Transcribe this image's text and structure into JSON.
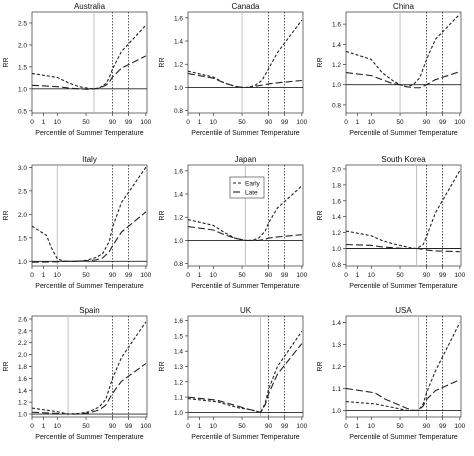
{
  "figure": {
    "xlabel": "Percentile of Summer Temperature",
    "ylabel": "RR",
    "legend": {
      "early": "Early",
      "late": "Late",
      "placement": "in Japan panel, upper center"
    }
  },
  "chart_data": [
    {
      "type": "line",
      "title": "Australia",
      "xlabel": "Percentile of Summer Temperature",
      "ylabel": "RR",
      "x_ticks": [
        "0",
        "1",
        "10",
        "50",
        "90",
        "99",
        "100"
      ],
      "y_ticks": [
        0.5,
        1.0,
        1.5,
        2.0,
        2.5
      ],
      "ylim": [
        0.45,
        2.75
      ],
      "reference_lines": {
        "mmt_percentile": 62,
        "p90": 90,
        "p99": 99,
        "rr_1": 1.0
      },
      "series": [
        {
          "name": "Early",
          "x": [
            0,
            10,
            25,
            40,
            55,
            62,
            70,
            80,
            85,
            90,
            95,
            100
          ],
          "values": [
            1.35,
            1.26,
            1.14,
            1.05,
            1.01,
            1.0,
            1.02,
            1.12,
            1.25,
            1.45,
            1.85,
            2.45
          ]
        },
        {
          "name": "Late",
          "x": [
            0,
            10,
            25,
            40,
            55,
            62,
            70,
            80,
            85,
            90,
            95,
            100
          ],
          "values": [
            1.08,
            1.05,
            1.02,
            1.0,
            0.99,
            1.0,
            1.02,
            1.08,
            1.15,
            1.27,
            1.47,
            1.75
          ]
        }
      ]
    },
    {
      "type": "line",
      "title": "Canada",
      "xlabel": "Percentile of Summer Temperature",
      "ylabel": "RR",
      "x_ticks": [
        "0",
        "1",
        "10",
        "50",
        "90",
        "99",
        "100"
      ],
      "y_ticks": [
        0.8,
        1.0,
        1.2,
        1.4,
        1.6
      ],
      "ylim": [
        0.78,
        1.65
      ],
      "reference_lines": {
        "mmt_percentile": 50,
        "p90": 90,
        "p99": 99,
        "rr_1": 1.0
      },
      "series": [
        {
          "name": "Early",
          "x": [
            0,
            10,
            25,
            40,
            50,
            60,
            70,
            80,
            90,
            95,
            100
          ],
          "values": [
            1.14,
            1.09,
            1.04,
            1.01,
            1.0,
            1.0,
            1.02,
            1.06,
            1.16,
            1.3,
            1.58
          ]
        },
        {
          "name": "Late",
          "x": [
            0,
            10,
            25,
            40,
            50,
            60,
            70,
            80,
            90,
            95,
            100
          ],
          "values": [
            1.12,
            1.08,
            1.04,
            1.01,
            1.0,
            1.0,
            1.01,
            1.02,
            1.03,
            1.04,
            1.06
          ]
        }
      ]
    },
    {
      "type": "line",
      "title": "China",
      "xlabel": "Percentile of Summer Temperature",
      "ylabel": "RR",
      "x_ticks": [
        "0",
        "1",
        "10",
        "50",
        "90",
        "99",
        "100"
      ],
      "y_ticks": [
        0.8,
        1.0,
        1.2,
        1.4,
        1.6
      ],
      "ylim": [
        0.72,
        1.72
      ],
      "reference_lines": {
        "mmt_percentile": 50,
        "p90": 90,
        "p99": 99,
        "rr_1": 1.0
      },
      "series": [
        {
          "name": "Early",
          "x": [
            0,
            10,
            25,
            40,
            50,
            60,
            70,
            80,
            90,
            95,
            100
          ],
          "values": [
            1.33,
            1.25,
            1.12,
            1.04,
            1.0,
            0.98,
            1.0,
            1.07,
            1.25,
            1.45,
            1.7
          ]
        },
        {
          "name": "Late",
          "x": [
            0,
            10,
            25,
            40,
            50,
            60,
            70,
            80,
            90,
            95,
            100
          ],
          "values": [
            1.12,
            1.09,
            1.05,
            1.01,
            1.0,
            0.98,
            0.97,
            0.97,
            1.0,
            1.05,
            1.13
          ]
        }
      ]
    },
    {
      "type": "line",
      "title": "Italy",
      "xlabel": "Percentile of Summer Temperature",
      "ylabel": "RR",
      "x_ticks": [
        "0",
        "1",
        "10",
        "50",
        "90",
        "99",
        "100"
      ],
      "y_ticks": [
        1.0,
        1.5,
        2.0,
        2.5,
        3.0
      ],
      "ylim": [
        0.9,
        3.05
      ],
      "reference_lines": {
        "mmt_percentile": 10,
        "p90": 90,
        "p99": 99,
        "rr_1": 1.0
      },
      "series": [
        {
          "name": "Early",
          "x": [
            0,
            3,
            6,
            10,
            20,
            35,
            50,
            65,
            75,
            85,
            90,
            95,
            100
          ],
          "values": [
            1.75,
            1.55,
            1.3,
            1.05,
            1.0,
            1.0,
            1.02,
            1.08,
            1.16,
            1.42,
            1.72,
            2.25,
            3.0
          ]
        },
        {
          "name": "Late",
          "x": [
            0,
            10,
            20,
            35,
            50,
            65,
            75,
            85,
            90,
            95,
            100
          ],
          "values": [
            0.98,
            0.99,
            1.0,
            1.0,
            1.01,
            1.03,
            1.07,
            1.2,
            1.33,
            1.62,
            2.05
          ]
        }
      ]
    },
    {
      "type": "line",
      "title": "Japan",
      "xlabel": "Percentile of Summer Temperature",
      "ylabel": "RR",
      "x_ticks": [
        "0",
        "1",
        "10",
        "50",
        "90",
        "99",
        "100"
      ],
      "y_ticks": [
        0.8,
        1.0,
        1.2,
        1.4,
        1.6
      ],
      "ylim": [
        0.78,
        1.65
      ],
      "reference_lines": {
        "mmt_percentile": 55,
        "p90": 90,
        "p99": 99,
        "rr_1": 1.0
      },
      "series": [
        {
          "name": "Early",
          "x": [
            0,
            10,
            25,
            40,
            55,
            65,
            75,
            85,
            90,
            95,
            100
          ],
          "values": [
            1.18,
            1.13,
            1.07,
            1.02,
            1.0,
            1.0,
            1.02,
            1.08,
            1.15,
            1.28,
            1.47
          ]
        },
        {
          "name": "Late",
          "x": [
            0,
            10,
            25,
            40,
            55,
            65,
            75,
            85,
            90,
            95,
            100
          ],
          "values": [
            1.12,
            1.09,
            1.05,
            1.02,
            1.0,
            1.0,
            1.0,
            1.01,
            1.02,
            1.03,
            1.05
          ]
        }
      ]
    },
    {
      "type": "line",
      "title": "South Korea",
      "xlabel": "Percentile of Summer Temperature",
      "ylabel": "RR",
      "x_ticks": [
        "0",
        "1",
        "10",
        "50",
        "90",
        "99",
        "100"
      ],
      "y_ticks": [
        0.8,
        1.0,
        1.2,
        1.4,
        1.6,
        1.8,
        2.0
      ],
      "ylim": [
        0.78,
        2.05
      ],
      "reference_lines": {
        "mmt_percentile": 75,
        "p90": 90,
        "p99": 99,
        "rr_1": 1.0
      },
      "series": [
        {
          "name": "Early",
          "x": [
            0,
            10,
            25,
            40,
            55,
            65,
            75,
            85,
            90,
            95,
            100
          ],
          "values": [
            1.22,
            1.16,
            1.1,
            1.06,
            1.03,
            1.01,
            1.0,
            1.05,
            1.15,
            1.45,
            1.98
          ]
        },
        {
          "name": "Late",
          "x": [
            0,
            10,
            25,
            40,
            55,
            65,
            75,
            85,
            90,
            95,
            100
          ],
          "values": [
            1.05,
            1.04,
            1.02,
            1.01,
            1.0,
            1.0,
            1.0,
            0.99,
            0.98,
            0.97,
            0.96
          ]
        }
      ]
    },
    {
      "type": "line",
      "title": "Spain",
      "xlabel": "Percentile of Summer Temperature",
      "ylabel": "RR",
      "x_ticks": [
        "0",
        "1",
        "10",
        "50",
        "90",
        "99",
        "100"
      ],
      "y_ticks": [
        1.0,
        1.2,
        1.4,
        1.6,
        1.8,
        2.0,
        2.2,
        2.4,
        2.6
      ],
      "ylim": [
        0.95,
        2.65
      ],
      "reference_lines": {
        "mmt_percentile": 25,
        "p90": 90,
        "p99": 99,
        "rr_1": 1.0
      },
      "series": [
        {
          "name": "Early",
          "x": [
            0,
            10,
            25,
            40,
            55,
            70,
            80,
            90,
            95,
            100
          ],
          "values": [
            1.1,
            1.04,
            1.0,
            1.01,
            1.04,
            1.12,
            1.25,
            1.6,
            1.95,
            2.55
          ]
        },
        {
          "name": "Late",
          "x": [
            0,
            10,
            25,
            40,
            55,
            70,
            80,
            90,
            95,
            100
          ],
          "values": [
            1.03,
            1.01,
            1.0,
            1.0,
            1.02,
            1.07,
            1.15,
            1.35,
            1.55,
            1.85
          ]
        }
      ]
    },
    {
      "type": "line",
      "title": "UK",
      "xlabel": "Percentile of Summer Temperature",
      "ylabel": "RR",
      "x_ticks": [
        "0",
        "1",
        "10",
        "50",
        "90",
        "99",
        "100"
      ],
      "y_ticks": [
        1.0,
        1.1,
        1.2,
        1.3,
        1.4,
        1.5,
        1.6
      ],
      "ylim": [
        0.97,
        1.63
      ],
      "reference_lines": {
        "mmt_percentile": 78,
        "p90": 90,
        "p99": 99,
        "rr_1": 1.0
      },
      "series": [
        {
          "name": "Early",
          "x": [
            0,
            15,
            30,
            45,
            60,
            70,
            78,
            85,
            90,
            95,
            100
          ],
          "values": [
            1.09,
            1.07,
            1.05,
            1.03,
            1.02,
            1.01,
            1.0,
            1.06,
            1.15,
            1.3,
            1.53
          ]
        },
        {
          "name": "Late",
          "x": [
            0,
            15,
            30,
            45,
            60,
            70,
            78,
            85,
            90,
            95,
            100
          ],
          "values": [
            1.1,
            1.08,
            1.06,
            1.04,
            1.02,
            1.01,
            1.0,
            1.05,
            1.12,
            1.25,
            1.45
          ]
        }
      ]
    },
    {
      "type": "line",
      "title": "USA",
      "xlabel": "Percentile of Summer Temperature",
      "ylabel": "RR",
      "x_ticks": [
        "0",
        "1",
        "10",
        "50",
        "90",
        "99",
        "100"
      ],
      "y_ticks": [
        1.0,
        1.1,
        1.2,
        1.3,
        1.4
      ],
      "ylim": [
        0.97,
        1.43
      ],
      "reference_lines": {
        "mmt_percentile": 78,
        "p90": 90,
        "p99": 99,
        "rr_1": 1.0
      },
      "series": [
        {
          "name": "Early",
          "x": [
            0,
            15,
            30,
            45,
            60,
            70,
            78,
            85,
            90,
            95,
            100
          ],
          "values": [
            1.04,
            1.03,
            1.02,
            1.01,
            1.0,
            1.0,
            1.0,
            1.03,
            1.08,
            1.18,
            1.4
          ]
        },
        {
          "name": "Late",
          "x": [
            0,
            15,
            30,
            45,
            60,
            70,
            78,
            85,
            90,
            95,
            100
          ],
          "values": [
            1.1,
            1.08,
            1.05,
            1.03,
            1.01,
            1.0,
            1.0,
            1.02,
            1.05,
            1.09,
            1.14
          ]
        }
      ]
    }
  ]
}
